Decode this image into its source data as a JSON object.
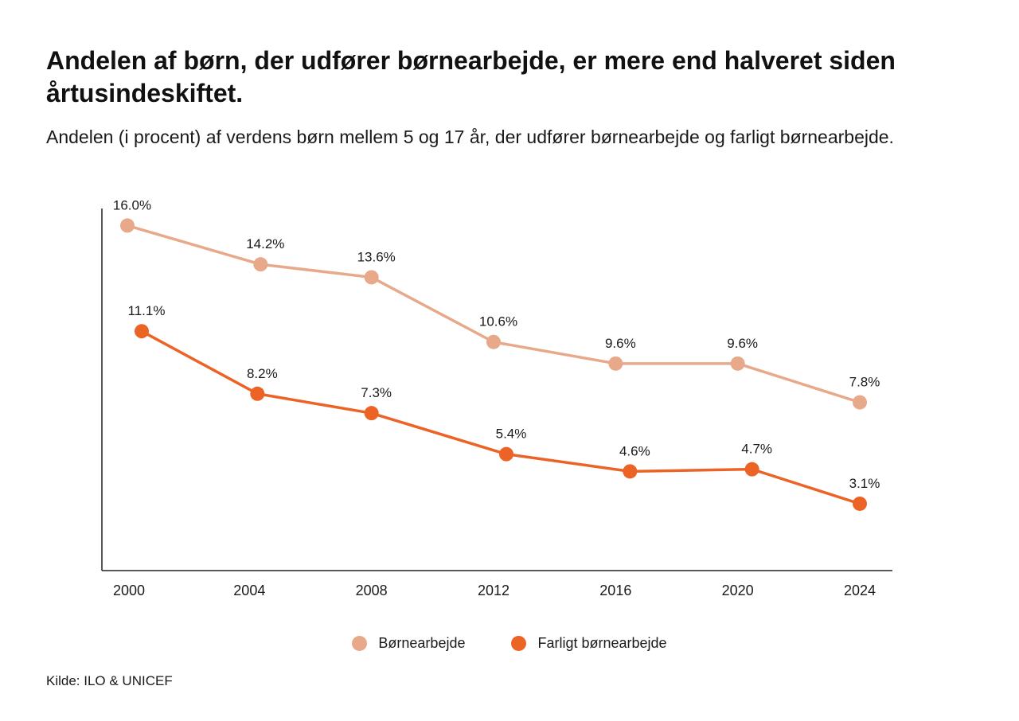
{
  "title": "Andelen af børn, der udfører børnearbejde, er mere end halveret siden årtusindeskiftet.",
  "subtitle": "Andelen (i procent) af verdens børn mellem 5 og 17 år, der udfører børnearbejde og farligt børnearbejde.",
  "source": "Kilde: ILO & UNICEF",
  "colors": {
    "light": "#E8A98A",
    "dark": "#EC6326",
    "axis": "#222222"
  },
  "chart_data": {
    "type": "line",
    "x": [
      "2000",
      "2004",
      "2008",
      "2012",
      "2016",
      "2020",
      "2024"
    ],
    "ylim": [
      0,
      18
    ],
    "grid": false,
    "legend_position": "bottom",
    "series": [
      {
        "name": "Børnearbejde",
        "color": "#E8A98A",
        "values": [
          16.0,
          14.2,
          13.6,
          10.6,
          9.6,
          9.6,
          7.8
        ],
        "labels": [
          "16.0%",
          "14.2%",
          "13.6%",
          "10.6%",
          "9.6%",
          "9.6%",
          "7.8%"
        ]
      },
      {
        "name": "Farligt børnearbejde",
        "color": "#EC6326",
        "values": [
          11.1,
          8.2,
          7.3,
          5.4,
          4.6,
          4.7,
          3.1
        ],
        "labels": [
          "11.1%",
          "8.2%",
          "7.3%",
          "5.4%",
          "4.6%",
          "4.7%",
          "3.1%"
        ]
      }
    ]
  }
}
